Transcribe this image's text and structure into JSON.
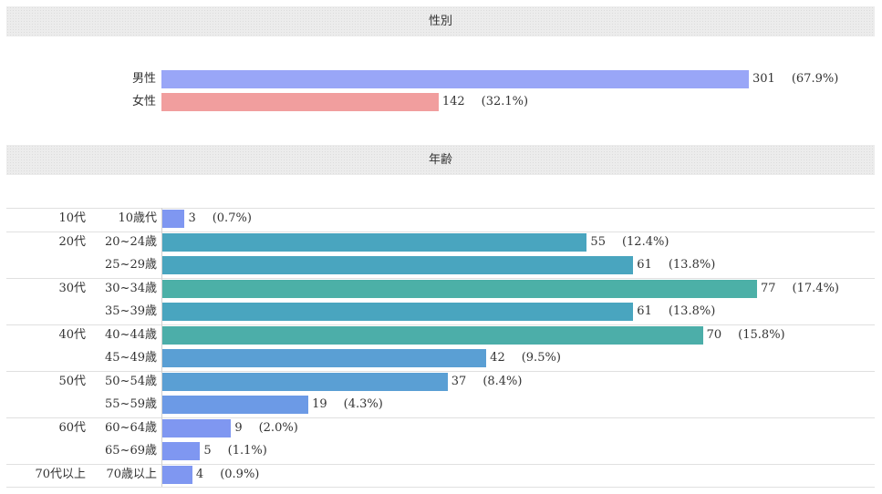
{
  "chart_data": [
    {
      "type": "bar",
      "title": "性別",
      "categories": [
        "男性",
        "女性"
      ],
      "values": [
        301,
        142
      ],
      "percents": [
        "(67.9%)",
        "(32.1%)"
      ],
      "colors": [
        "#99a6f7",
        "#f19e9e"
      ]
    },
    {
      "type": "bar",
      "title": "年齢",
      "groups": [
        {
          "label": "10代",
          "items": [
            {
              "label": "10歳代",
              "value": 3,
              "pct": "(0.7%)",
              "color": "#7f97f1"
            }
          ]
        },
        {
          "label": "20代",
          "items": [
            {
              "label": "20~24歳",
              "value": 55,
              "pct": "(12.4%)",
              "color": "#49a5bf"
            },
            {
              "label": "25~29歳",
              "value": 61,
              "pct": "(13.8%)",
              "color": "#49a5bf"
            }
          ]
        },
        {
          "label": "30代",
          "items": [
            {
              "label": "30~34歳",
              "value": 77,
              "pct": "(17.4%)",
              "color": "#4cb0a7"
            },
            {
              "label": "35~39歳",
              "value": 61,
              "pct": "(13.8%)",
              "color": "#49a5bf"
            }
          ]
        },
        {
          "label": "40代",
          "items": [
            {
              "label": "40~44歳",
              "value": 70,
              "pct": "(15.8%)",
              "color": "#4caea9"
            },
            {
              "label": "45~49歳",
              "value": 42,
              "pct": "(9.5%)",
              "color": "#5a9fd4"
            }
          ]
        },
        {
          "label": "50代",
          "items": [
            {
              "label": "50~54歳",
              "value": 37,
              "pct": "(8.4%)",
              "color": "#5a9fd4"
            },
            {
              "label": "55~59歳",
              "value": 19,
              "pct": "(4.3%)",
              "color": "#6c9ae6"
            }
          ]
        },
        {
          "label": "60代",
          "items": [
            {
              "label": "60~64歳",
              "value": 9,
              "pct": "(2.0%)",
              "color": "#7f97f1"
            },
            {
              "label": "65~69歳",
              "value": 5,
              "pct": "(1.1%)",
              "color": "#7f97f1"
            }
          ]
        },
        {
          "label": "70代以上",
          "items": [
            {
              "label": "70歳以上",
              "value": 4,
              "pct": "(0.9%)",
              "color": "#7f97f1"
            }
          ]
        }
      ]
    }
  ]
}
